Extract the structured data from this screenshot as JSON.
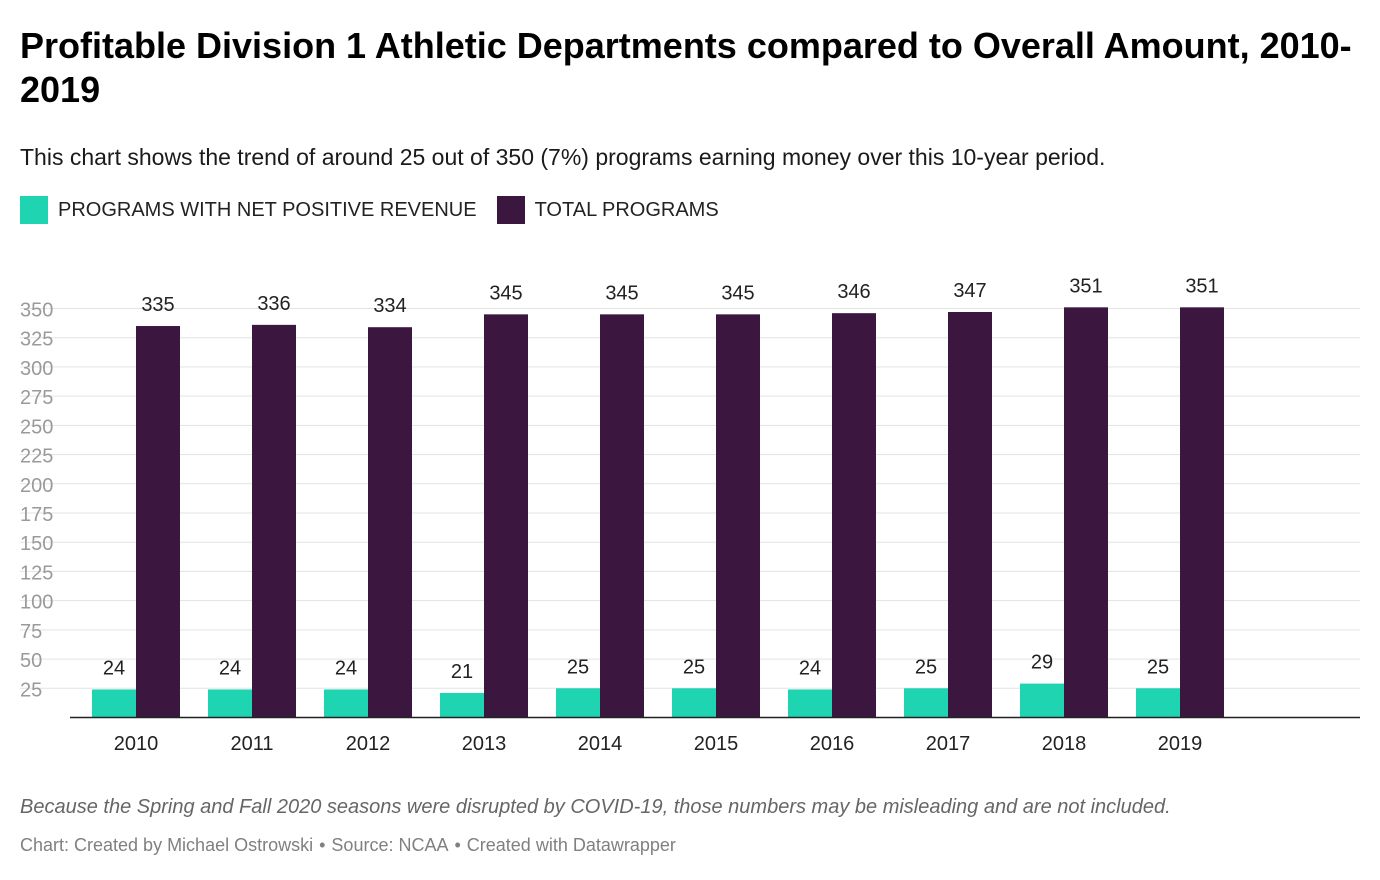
{
  "title": "Profitable Division 1 Athletic Departments compared to Overall Amount, 2010-2019",
  "subtitle": "This chart shows the trend of around 25 out of 350 (7%) programs earning money over this 10-year period.",
  "legend": [
    {
      "label": "PROGRAMS WITH NET POSITIVE REVENUE",
      "color": "#1fd5b1"
    },
    {
      "label": "TOTAL PROGRAMS",
      "color": "#3b1740"
    }
  ],
  "footnote": "Because the Spring and Fall 2020 seasons were disrupted by COVID-19, those numbers may be misleading and are not included.",
  "credits": {
    "chart_by": "Chart: Created by Michael Ostrowski",
    "source": "Source: NCAA",
    "tool": "Created with Datawrapper",
    "separator": "•"
  },
  "chart_data": {
    "type": "bar",
    "categories": [
      "2010",
      "2011",
      "2012",
      "2013",
      "2014",
      "2015",
      "2016",
      "2017",
      "2018",
      "2019"
    ],
    "series": [
      {
        "name": "PROGRAMS WITH NET POSITIVE REVENUE",
        "color": "#1fd5b1",
        "values": [
          24,
          24,
          24,
          21,
          25,
          25,
          24,
          25,
          29,
          25
        ]
      },
      {
        "name": "TOTAL PROGRAMS",
        "color": "#3b1740",
        "values": [
          335,
          336,
          334,
          345,
          345,
          345,
          346,
          347,
          351,
          351
        ]
      }
    ],
    "yticks": [
      25,
      50,
      75,
      100,
      125,
      150,
      175,
      200,
      225,
      250,
      275,
      300,
      325,
      350
    ],
    "ylim": [
      0,
      350
    ],
    "grid": true,
    "legend_position": "top-left"
  }
}
